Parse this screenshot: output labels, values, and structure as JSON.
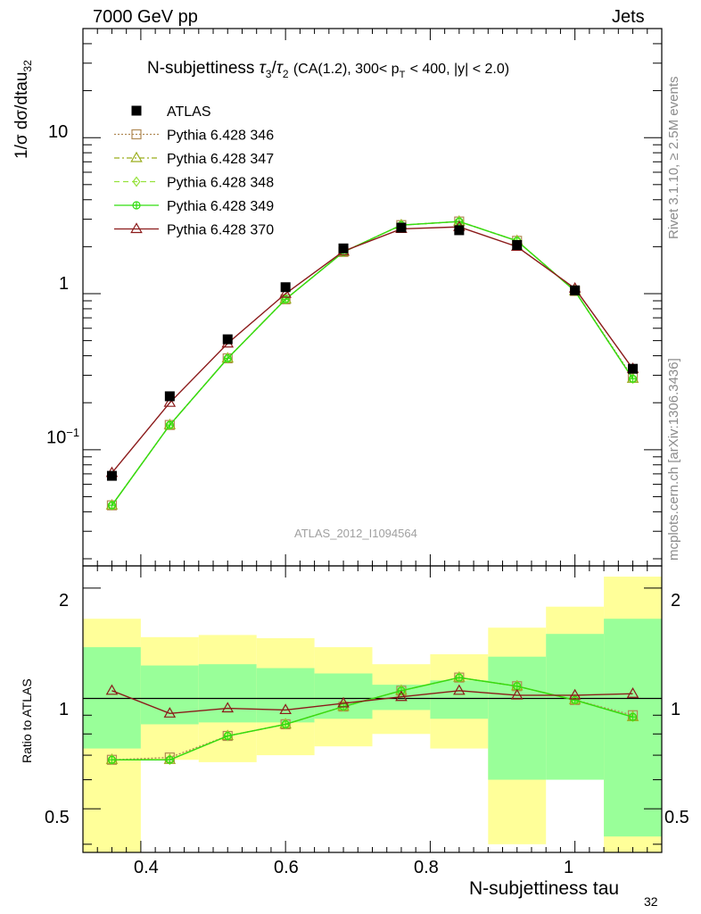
{
  "header": {
    "left": "7000 GeV pp",
    "right": "Jets"
  },
  "upper": {
    "ylabel": "1/σ dσ/dtau",
    "ylabel_sub": "32",
    "title": {
      "main": "N-subjettiness",
      "tau3": "τ",
      "tau3_sub": "3",
      "slash": "/",
      "tau2": "τ",
      "tau2_sub": "2",
      "cuts_a": "(CA(1.2), 300< p",
      "cuts_sub": "T",
      "cuts_b": "< 400, |y| < 2.0)"
    },
    "analysis_label": "ATLAS_2012_I1094564",
    "ytick_labels": {
      "t10": "10",
      "t1": "1",
      "t01_base": "10",
      "t01_exp": "−1"
    }
  },
  "lower": {
    "ylabel": "Ratio to ATLAS",
    "ytick_labels": [
      "2",
      "1",
      "0.5"
    ],
    "xtick_labels": [
      "0.4",
      "0.6",
      "0.8",
      "1"
    ]
  },
  "xlabel": "N-subjettiness tau",
  "xlabel_sub": "32",
  "side_text": {
    "rivet": "Rivet 3.1.10, ≥ 2.5M events",
    "mcplots": "mcplots.cern.ch [arXiv:1306.3436]"
  },
  "legend": [
    {
      "label": "ATLAS",
      "color": "#000000",
      "marker": "filled-square",
      "dash": "none"
    },
    {
      "label": "Pythia 6.428 346",
      "color": "#b08a55",
      "marker": "open-square",
      "dash": "dotted"
    },
    {
      "label": "Pythia 6.428 347",
      "color": "#9aad1c",
      "marker": "open-triangle",
      "dash": "dashdot"
    },
    {
      "label": "Pythia 6.428 348",
      "color": "#96e23c",
      "marker": "open-diamond",
      "dash": "dashed"
    },
    {
      "label": "Pythia 6.428 349",
      "color": "#33dd11",
      "marker": "crossed-circle",
      "dash": "solid"
    },
    {
      "label": "Pythia 6.428 370",
      "color": "#8b1a1a",
      "marker": "open-triangle",
      "dash": "solid"
    }
  ],
  "chart_data": {
    "type": "line",
    "x": [
      0.36,
      0.44,
      0.52,
      0.6,
      0.68,
      0.76,
      0.84,
      0.92,
      1.0,
      1.08
    ],
    "bin_edges": [
      0.32,
      0.4,
      0.48,
      0.56,
      0.64,
      0.72,
      0.8,
      0.88,
      0.96,
      1.04,
      1.12
    ],
    "xlim": [
      0.32,
      1.12
    ],
    "ylim_upper": [
      0.018,
      50
    ],
    "ylog_upper": true,
    "ylim_ratio": [
      0.38,
      2.3
    ],
    "ylog_ratio": true,
    "series": [
      {
        "name": "ATLAS",
        "values": [
          0.068,
          0.22,
          0.51,
          1.1,
          1.95,
          2.65,
          2.55,
          2.05,
          1.05,
          0.33
        ]
      },
      {
        "name": "Pythia 6.428 346",
        "values": [
          0.044,
          0.144,
          0.385,
          0.92,
          1.85,
          2.75,
          2.9,
          2.18,
          1.04,
          0.29
        ]
      },
      {
        "name": "Pythia 6.428 347",
        "values": [
          0.044,
          0.144,
          0.385,
          0.92,
          1.85,
          2.75,
          2.9,
          2.18,
          1.04,
          0.285
        ]
      },
      {
        "name": "Pythia 6.428 348",
        "values": [
          0.044,
          0.144,
          0.385,
          0.92,
          1.85,
          2.75,
          2.9,
          2.18,
          1.04,
          0.285
        ]
      },
      {
        "name": "Pythia 6.428 349",
        "values": [
          0.044,
          0.144,
          0.385,
          0.92,
          1.85,
          2.75,
          2.9,
          2.18,
          1.04,
          0.285
        ]
      },
      {
        "name": "Pythia 6.428 370",
        "values": [
          0.071,
          0.2,
          0.48,
          1.0,
          1.87,
          2.6,
          2.68,
          2.0,
          1.08,
          0.33
        ]
      }
    ],
    "ratio_series": [
      {
        "name": "Pythia 6.428 346",
        "values": [
          0.68,
          0.69,
          0.79,
          0.85,
          0.95,
          1.05,
          1.14,
          1.08,
          0.99,
          0.9
        ]
      },
      {
        "name": "Pythia 6.428 347",
        "values": [
          0.68,
          0.68,
          0.79,
          0.85,
          0.95,
          1.05,
          1.14,
          1.08,
          0.99,
          0.89
        ]
      },
      {
        "name": "Pythia 6.428 348",
        "values": [
          0.68,
          0.68,
          0.79,
          0.85,
          0.95,
          1.05,
          1.14,
          1.08,
          0.99,
          0.89
        ]
      },
      {
        "name": "Pythia 6.428 349",
        "values": [
          0.68,
          0.68,
          0.79,
          0.85,
          0.95,
          1.05,
          1.14,
          1.08,
          0.99,
          0.89
        ]
      },
      {
        "name": "Pythia 6.428 370",
        "values": [
          1.05,
          0.91,
          0.94,
          0.93,
          0.97,
          1.01,
          1.05,
          1.02,
          1.02,
          1.03
        ]
      }
    ],
    "uncertainty_bands": {
      "stat_color": "#99ff99",
      "total_color": "#ffff99",
      "green_low": [
        0.73,
        0.85,
        0.86,
        0.86,
        0.88,
        0.93,
        0.88,
        0.6,
        0.6,
        0.42
      ],
      "green_high": [
        1.38,
        1.23,
        1.24,
        1.21,
        1.17,
        1.09,
        1.12,
        1.3,
        1.5,
        1.65
      ],
      "yellow_low": [
        0.3,
        0.68,
        0.67,
        0.7,
        0.74,
        0.8,
        0.73,
        0.4,
        0.7,
        0.3
      ],
      "yellow_high": [
        1.65,
        1.47,
        1.49,
        1.46,
        1.38,
        1.24,
        1.32,
        1.56,
        1.78,
        2.15
      ]
    }
  }
}
